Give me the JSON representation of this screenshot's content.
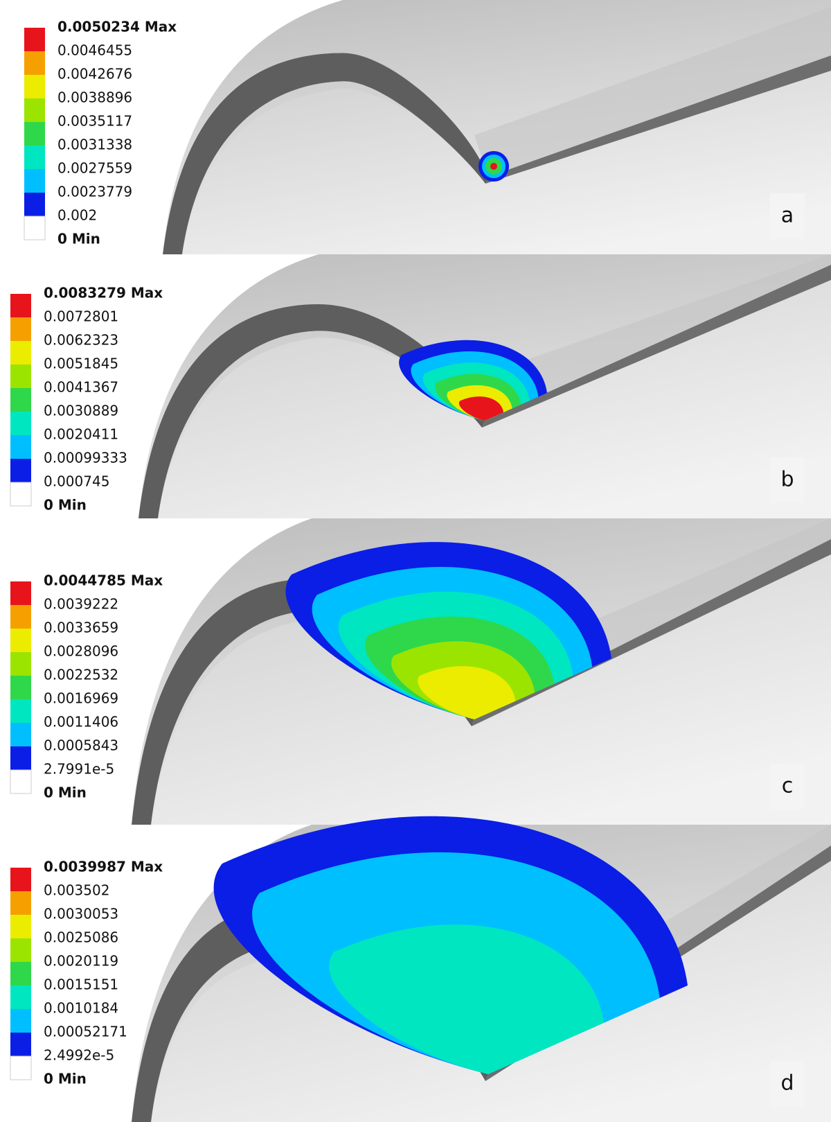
{
  "panels": [
    {
      "label": "a",
      "legend": [
        "0.0050234 Max",
        "0.0046455",
        "0.0042676",
        "0.0038896",
        "0.0035117",
        "0.0031338",
        "0.0027559",
        "0.0023779",
        "0.002",
        "0 Min"
      ]
    },
    {
      "label": "b",
      "legend": [
        "0.0083279 Max",
        "0.0072801",
        "0.0062323",
        "0.0051845",
        "0.0041367",
        "0.0030889",
        "0.0020411",
        "0.00099333",
        "0.000745",
        "0 Min"
      ]
    },
    {
      "label": "c",
      "legend": [
        "0.0044785 Max",
        "0.0039222",
        "0.0033659",
        "0.0028096",
        "0.0022532",
        "0.0016969",
        "0.0011406",
        "0.0005843",
        "2.7991e-5",
        "0 Min"
      ]
    },
    {
      "label": "d",
      "legend": [
        "0.0039987 Max",
        "0.003502",
        "0.0030053",
        "0.0025086",
        "0.0020119",
        "0.0015151",
        "0.0010184",
        "0.00052171",
        "2.4992e-5",
        "0 Min"
      ]
    }
  ]
}
